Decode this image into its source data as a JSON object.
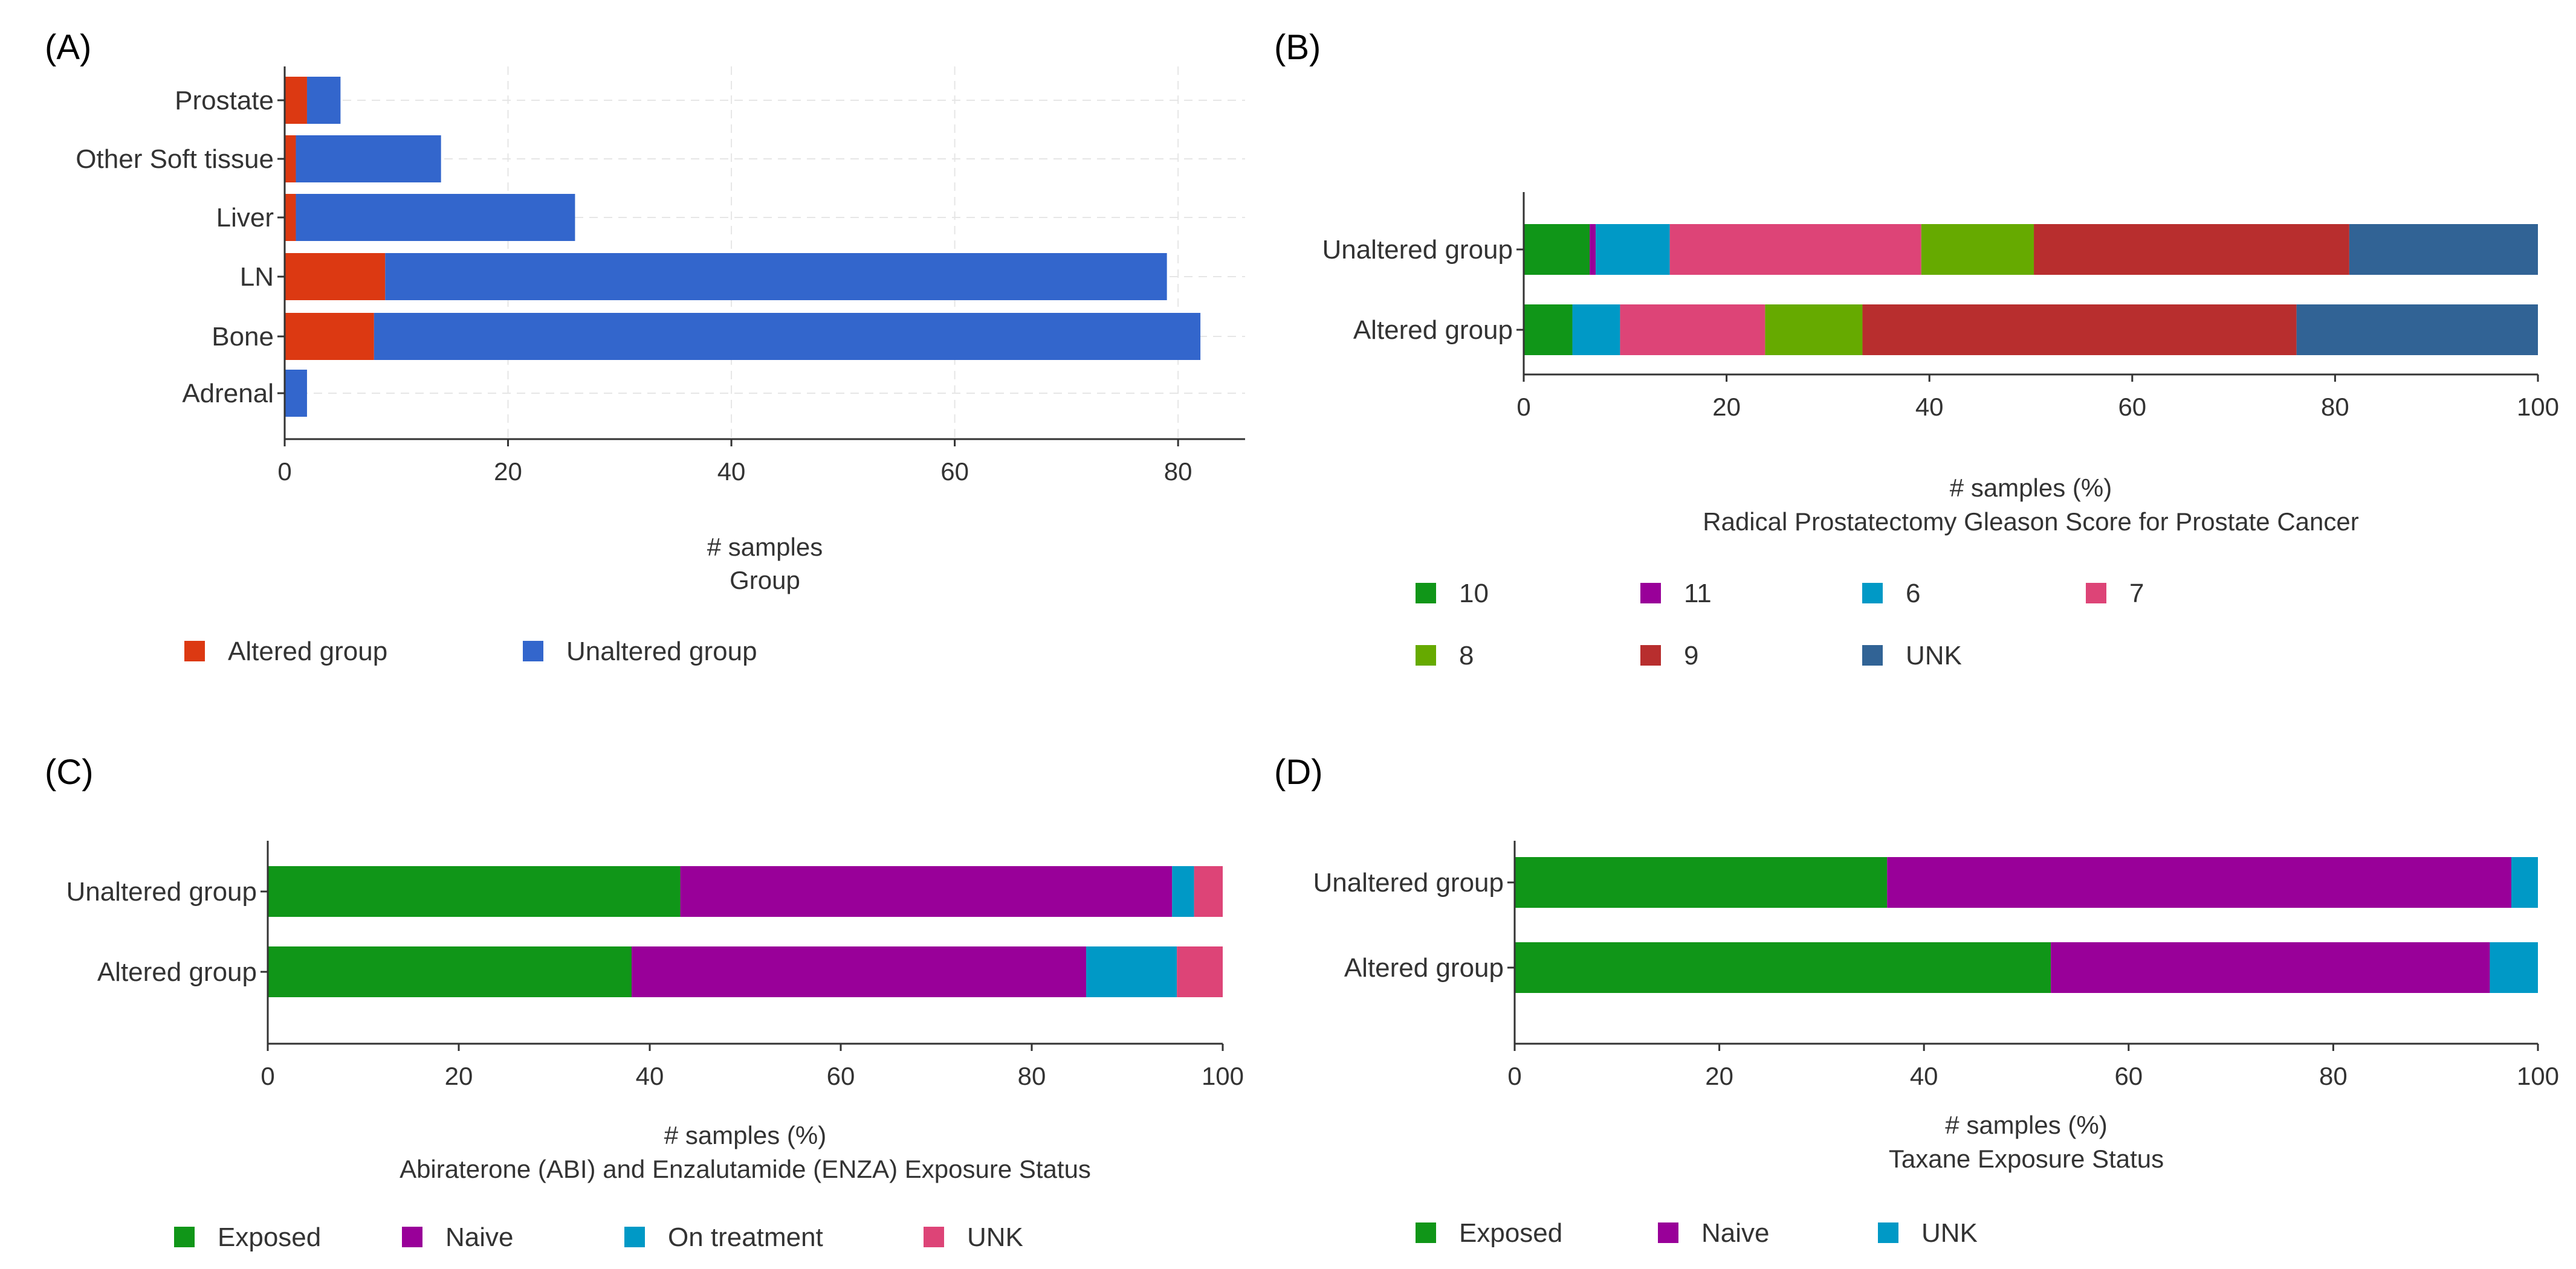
{
  "chart_data": [
    {
      "panel": "(A)",
      "type": "bar",
      "orientation": "horizontal",
      "stacked": true,
      "categories": [
        "Prostate",
        "Other Soft tissue",
        "Liver",
        "LN",
        "Bone",
        "Adrenal"
      ],
      "series": [
        {
          "name": "Altered group",
          "color": "#dc3912",
          "values": [
            2,
            1,
            1,
            9,
            8,
            0
          ]
        },
        {
          "name": "Unaltered group",
          "color": "#3366cc",
          "values": [
            3,
            13,
            25,
            70,
            74,
            2
          ]
        }
      ],
      "xlim": [
        0,
        86
      ],
      "xticks": [
        "0",
        "20",
        "40",
        "60",
        "80"
      ],
      "grid": true,
      "xlabel": "# samples",
      "legend_title": "Group",
      "legend": [
        "Altered group",
        "Unaltered group"
      ]
    },
    {
      "panel": "(B)",
      "type": "bar",
      "orientation": "horizontal",
      "stacked": true,
      "categories": [
        "Unaltered group",
        "Altered group"
      ],
      "series": [
        {
          "name": "10",
          "color": "#109618",
          "values": [
            6.5,
            4.8
          ]
        },
        {
          "name": "11",
          "color": "#990099",
          "values": [
            0.6,
            0
          ]
        },
        {
          "name": "6",
          "color": "#0099c6",
          "values": [
            7.3,
            4.7
          ]
        },
        {
          "name": "7",
          "color": "#dd4477",
          "values": [
            24.8,
            14.3
          ]
        },
        {
          "name": "8",
          "color": "#66aa00",
          "values": [
            11.1,
            9.6
          ]
        },
        {
          "name": "9",
          "color": "#b82e2e",
          "values": [
            31.1,
            42.8
          ]
        },
        {
          "name": "UNK",
          "color": "#316395",
          "values": [
            18.6,
            23.8
          ]
        }
      ],
      "xlim": [
        0,
        100
      ],
      "xticks": [
        "0",
        "20",
        "40",
        "60",
        "80",
        "100"
      ],
      "xlabel": "# samples (%)",
      "legend_title": "Radical Prostatectomy Gleason Score for Prostate Cancer",
      "legend": [
        "10",
        "11",
        "6",
        "7",
        "8",
        "9",
        "UNK"
      ]
    },
    {
      "panel": "(C)",
      "type": "bar",
      "orientation": "horizontal",
      "stacked": true,
      "categories": [
        "Unaltered group",
        "Altered group"
      ],
      "series": [
        {
          "name": "Exposed",
          "color": "#109618",
          "values": [
            43.2,
            38.1
          ]
        },
        {
          "name": "Naive",
          "color": "#990099",
          "values": [
            51.5,
            47.6
          ]
        },
        {
          "name": "On treatment",
          "color": "#0099c6",
          "values": [
            2.3,
            9.5
          ]
        },
        {
          "name": "UNK",
          "color": "#dd4477",
          "values": [
            3.0,
            4.8
          ]
        }
      ],
      "xlim": [
        0,
        100
      ],
      "xticks": [
        "0",
        "20",
        "40",
        "60",
        "80",
        "100"
      ],
      "xlabel": "# samples (%)",
      "legend_title": "Abiraterone (ABI) and Enzalutamide (ENZA) Exposure Status",
      "legend": [
        "Exposed",
        "Naive",
        "On treatment",
        "UNK"
      ]
    },
    {
      "panel": "(D)",
      "type": "bar",
      "orientation": "horizontal",
      "stacked": true,
      "categories": [
        "Unaltered group",
        "Altered group"
      ],
      "series": [
        {
          "name": "Exposed",
          "color": "#109618",
          "values": [
            36.4,
            52.4
          ]
        },
        {
          "name": "Naive",
          "color": "#990099",
          "values": [
            61.0,
            42.9
          ]
        },
        {
          "name": "UNK",
          "color": "#0099c6",
          "values": [
            2.6,
            4.7
          ]
        }
      ],
      "xlim": [
        0,
        100
      ],
      "xticks": [
        "0",
        "20",
        "40",
        "60",
        "80",
        "100"
      ],
      "xlabel": "# samples (%)",
      "legend_title": "Taxane Exposure Status",
      "legend": [
        "Exposed",
        "Naive",
        "UNK"
      ]
    }
  ]
}
